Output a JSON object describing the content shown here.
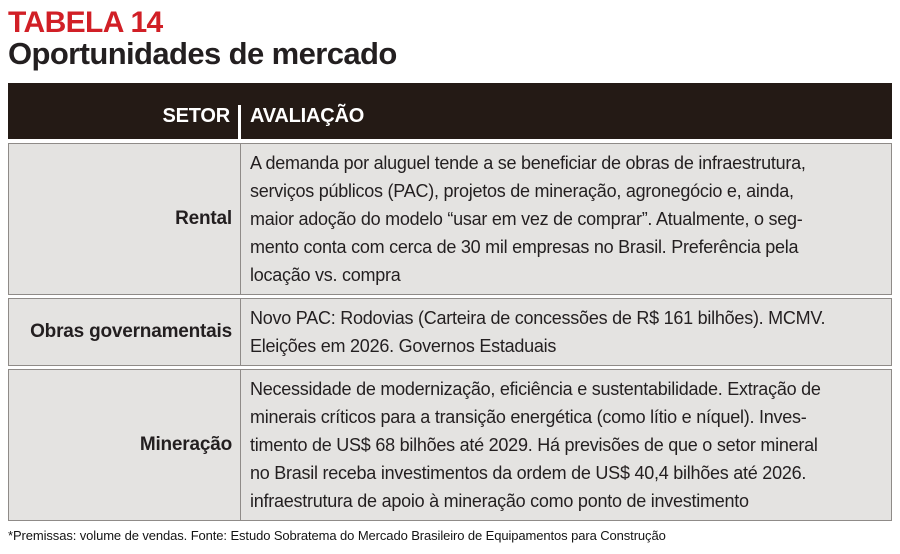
{
  "page": {
    "kicker": "TABELA 14",
    "title": "Oportunidades de mercado",
    "footnote": "*Premissas: volume de vendas. Fonte: Estudo Sobratema do Mercado Brasileiro de Equipamentos para Construção"
  },
  "table": {
    "columns": {
      "setor": "SETOR",
      "avaliacao": "AVALIAÇÃO"
    },
    "rows": [
      {
        "setor": "Rental",
        "avaliacao": [
          "A demanda por aluguel tende a se beneficiar de obras de infraestrutura,",
          "serviços públicos (PAC), projetos de mineração, agronegócio e, ainda,",
          "maior adoção do modelo “usar em vez de comprar”. Atualmente, o seg-",
          "mento conta com cerca de 30 mil empresas no Brasil. Preferência pela",
          "locação vs. compra"
        ]
      },
      {
        "setor": "Obras governamentais",
        "avaliacao": [
          "Novo PAC: Rodovias (Carteira de concessões de R$ 161 bilhões). MCMV.",
          "Eleições em 2026. Governos Estaduais"
        ]
      },
      {
        "setor": "Mineração",
        "avaliacao": [
          "Necessidade de modernização, eficiência e sustentabilidade. Extração de",
          "minerais críticos para a transição energética (como lítio e níquel). Inves-",
          "timento de US$ 68 bilhões até 2029. Há previsões de que o setor mineral",
          "no Brasil receba investimentos da ordem de US$ 40,4 bilhões até 2026.",
          "infraestrutura de apoio à mineração como ponto de investimento"
        ]
      }
    ]
  },
  "colors": {
    "accent_red": "#d11f26",
    "header_bg": "#241a15",
    "row_bg": "#e4e3e1",
    "border_gray": "#8f8b88",
    "text": "#231f20"
  }
}
